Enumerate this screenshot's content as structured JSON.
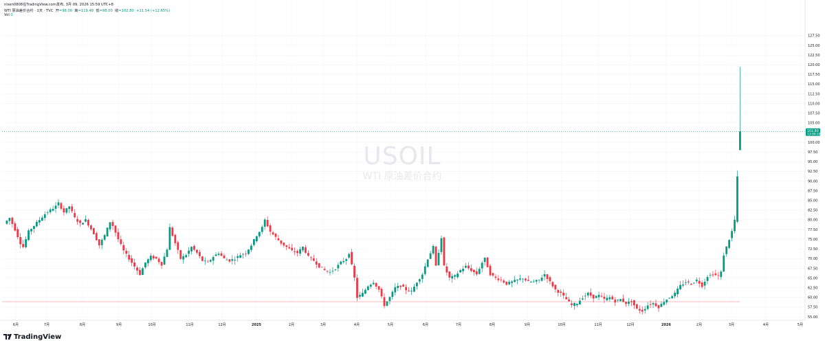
{
  "header": {
    "attribution": "nlsen0808在TradingView.com发布, 3月 09, 2026 15:59 UTC+8",
    "symbol_line": "WTI 原油差价合约 · 1天 · TVC",
    "ohlc": {
      "open_label": "开",
      "open": "=98.00",
      "high_label": "高",
      "high": "=119.48",
      "low_label": "低",
      "low": "=98.00",
      "close_label": "收",
      "close": "=102.80",
      "change": "+11.54 (+12.65%)"
    },
    "vol_label": "Vol",
    "vol_value": "0"
  },
  "watermark": {
    "ticker": "USOIL",
    "name": "WTI 原油差价合约"
  },
  "brand": {
    "name": "TradingView"
  },
  "colors": {
    "up": "#089981",
    "down": "#f23645",
    "grid": "#f0f3fa",
    "price_line": "#089981",
    "ref_line": "#f23645"
  },
  "price_label": {
    "price": "102.80",
    "countdown": "13:00:18"
  },
  "chart_data": {
    "type": "candlestick",
    "title": "USOIL",
    "subtitle": "WTI 原油差价合约",
    "interval": "1D",
    "y_ticks": [
      "55.00",
      "57.50",
      "60.00",
      "62.50",
      "65.00",
      "67.50",
      "70.00",
      "72.50",
      "75.00",
      "77.50",
      "80.00",
      "82.50",
      "85.00",
      "87.50",
      "90.00",
      "92.50",
      "95.00",
      "97.50",
      "100.00",
      "102.50",
      "105.00",
      "107.50",
      "110.00",
      "112.50",
      "115.00",
      "117.50",
      "120.00",
      "122.50",
      "125.00",
      "127.50"
    ],
    "ylim": [
      52.5,
      130
    ],
    "x_ticks": [
      "6月",
      "7月",
      "8月",
      "9月",
      "10月",
      "11月",
      "12月",
      "2025",
      "2月",
      "3月",
      "4月",
      "5月",
      "6月",
      "7月",
      "8月",
      "9月",
      "10月",
      "11月",
      "12月",
      "2026",
      "2月",
      "3月",
      "4月",
      "5月"
    ],
    "x_tick_bold": [
      "2025",
      "2026"
    ],
    "reference_line": 58.9,
    "last_price": 102.8,
    "price_path": [
      [
        0,
        79.0
      ],
      [
        2,
        80.5
      ],
      [
        4,
        77.5
      ],
      [
        6,
        74.0
      ],
      [
        7,
        73.0
      ],
      [
        9,
        77.0
      ],
      [
        11,
        78.5
      ],
      [
        13,
        80.0
      ],
      [
        15,
        81.5
      ],
      [
        17,
        82.5
      ],
      [
        19,
        83.5
      ],
      [
        20,
        84.3
      ],
      [
        22,
        82.0
      ],
      [
        24,
        83.5
      ],
      [
        26,
        80.5
      ],
      [
        28,
        79.0
      ],
      [
        30,
        80.0
      ],
      [
        33,
        76.5
      ],
      [
        35,
        73.5
      ],
      [
        37,
        76.0
      ],
      [
        39,
        79.5
      ],
      [
        40,
        78.5
      ],
      [
        42,
        75.0
      ],
      [
        44,
        72.0
      ],
      [
        46,
        70.0
      ],
      [
        48,
        68.0
      ],
      [
        50,
        66.0
      ],
      [
        52,
        69.0
      ],
      [
        54,
        70.5
      ],
      [
        56,
        70.0
      ],
      [
        58,
        68.5
      ],
      [
        60,
        72.5
      ],
      [
        61,
        78.0
      ],
      [
        63,
        74.0
      ],
      [
        65,
        70.0
      ],
      [
        67,
        71.0
      ],
      [
        69,
        73.0
      ],
      [
        71,
        71.5
      ],
      [
        73,
        69.5
      ],
      [
        75,
        69.0
      ],
      [
        77,
        70.5
      ],
      [
        79,
        71.5
      ],
      [
        81,
        70.0
      ],
      [
        83,
        69.5
      ],
      [
        85,
        70.0
      ],
      [
        87,
        71.0
      ],
      [
        89,
        71.5
      ],
      [
        91,
        73.5
      ],
      [
        93,
        76.0
      ],
      [
        95,
        78.0
      ],
      [
        96,
        80.0
      ],
      [
        98,
        77.0
      ],
      [
        100,
        75.5
      ],
      [
        102,
        74.0
      ],
      [
        104,
        73.0
      ],
      [
        106,
        72.0
      ],
      [
        108,
        71.5
      ],
      [
        110,
        73.0
      ],
      [
        112,
        70.5
      ],
      [
        114,
        69.5
      ],
      [
        116,
        68.0
      ],
      [
        118,
        67.0
      ],
      [
        120,
        66.5
      ],
      [
        122,
        67.5
      ],
      [
        124,
        69.0
      ],
      [
        126,
        70.0
      ],
      [
        127,
        71.5
      ],
      [
        129,
        65.0
      ],
      [
        130,
        60.0
      ],
      [
        132,
        61.0
      ],
      [
        134,
        63.0
      ],
      [
        136,
        64.0
      ],
      [
        138,
        62.0
      ],
      [
        140,
        58.0
      ],
      [
        142,
        60.0
      ],
      [
        144,
        62.5
      ],
      [
        146,
        63.0
      ],
      [
        148,
        62.0
      ],
      [
        150,
        61.5
      ],
      [
        152,
        64.0
      ],
      [
        154,
        66.0
      ],
      [
        156,
        70.0
      ],
      [
        158,
        73.0
      ],
      [
        159,
        68.0
      ],
      [
        161,
        75.5
      ],
      [
        162,
        68.0
      ],
      [
        164,
        65.0
      ],
      [
        166,
        65.5
      ],
      [
        168,
        67.0
      ],
      [
        170,
        68.0
      ],
      [
        172,
        67.0
      ],
      [
        174,
        66.0
      ],
      [
        176,
        69.0
      ],
      [
        177,
        70.0
      ],
      [
        179,
        66.0
      ],
      [
        181,
        65.0
      ],
      [
        183,
        64.5
      ],
      [
        185,
        63.5
      ],
      [
        187,
        64.0
      ],
      [
        189,
        64.5
      ],
      [
        191,
        65.0
      ],
      [
        193,
        64.0
      ],
      [
        195,
        64.0
      ],
      [
        197,
        64.5
      ],
      [
        199,
        66.0
      ],
      [
        201,
        64.0
      ],
      [
        203,
        62.0
      ],
      [
        205,
        61.0
      ],
      [
        207,
        59.5
      ],
      [
        209,
        58.0
      ],
      [
        211,
        58.5
      ],
      [
        213,
        60.0
      ],
      [
        215,
        61.0
      ],
      [
        217,
        60.0
      ],
      [
        219,
        60.5
      ],
      [
        221,
        59.5
      ],
      [
        223,
        60.0
      ],
      [
        225,
        59.0
      ],
      [
        227,
        59.5
      ],
      [
        229,
        58.5
      ],
      [
        231,
        59.0
      ],
      [
        233,
        57.0
      ],
      [
        235,
        56.5
      ],
      [
        237,
        58.0
      ],
      [
        239,
        58.5
      ],
      [
        241,
        57.5
      ],
      [
        243,
        59.0
      ],
      [
        245,
        60.0
      ],
      [
        247,
        61.0
      ],
      [
        249,
        63.0
      ],
      [
        251,
        64.0
      ],
      [
        253,
        63.5
      ],
      [
        255,
        64.5
      ],
      [
        257,
        63.0
      ],
      [
        259,
        65.5
      ],
      [
        261,
        66.0
      ],
      [
        263,
        65.5
      ],
      [
        264,
        66.5
      ],
      [
        265,
        71.0
      ],
      [
        266,
        73.0
      ],
      [
        267,
        75.0
      ],
      [
        268,
        77.0
      ],
      [
        269,
        80.0
      ],
      [
        270,
        91.2
      ]
    ],
    "candles": [
      {
        "open": 91.2,
        "high": 92.7,
        "low": 79.5,
        "close": 91.2
      },
      {
        "open": 98.0,
        "high": 119.48,
        "low": 98.0,
        "close": 102.8
      }
    ]
  }
}
